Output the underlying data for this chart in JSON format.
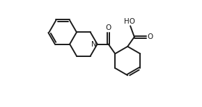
{
  "background": "#ffffff",
  "line_color": "#1a1a1a",
  "line_width": 1.4,
  "font_size": 7.5,
  "figsize": [
    2.9,
    1.54
  ],
  "dpi": 100,
  "xlim": [
    0,
    10.5
  ],
  "ylim": [
    -0.5,
    5.5
  ]
}
